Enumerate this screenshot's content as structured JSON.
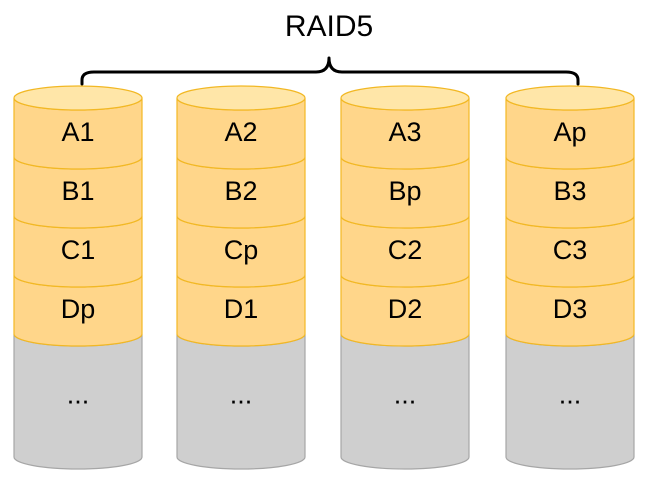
{
  "title": "RAID5",
  "colors": {
    "block_fill": "#FFD68A",
    "block_top": "#FFE6A8",
    "block_stroke": "#F2B824",
    "empty_fill": "#CFCFCF",
    "empty_top": "#E3E3E3",
    "empty_stroke": "#A6A6A6",
    "brace": "#000000"
  },
  "disks": [
    {
      "blocks": [
        "A1",
        "B1",
        "C1",
        "Dp"
      ],
      "rest": "..."
    },
    {
      "blocks": [
        "A2",
        "B2",
        "Cp",
        "D1"
      ],
      "rest": "..."
    },
    {
      "blocks": [
        "A3",
        "Bp",
        "C2",
        "D2"
      ],
      "rest": "..."
    },
    {
      "blocks": [
        "Ap",
        "B3",
        "C3",
        "D3"
      ],
      "rest": "..."
    }
  ]
}
